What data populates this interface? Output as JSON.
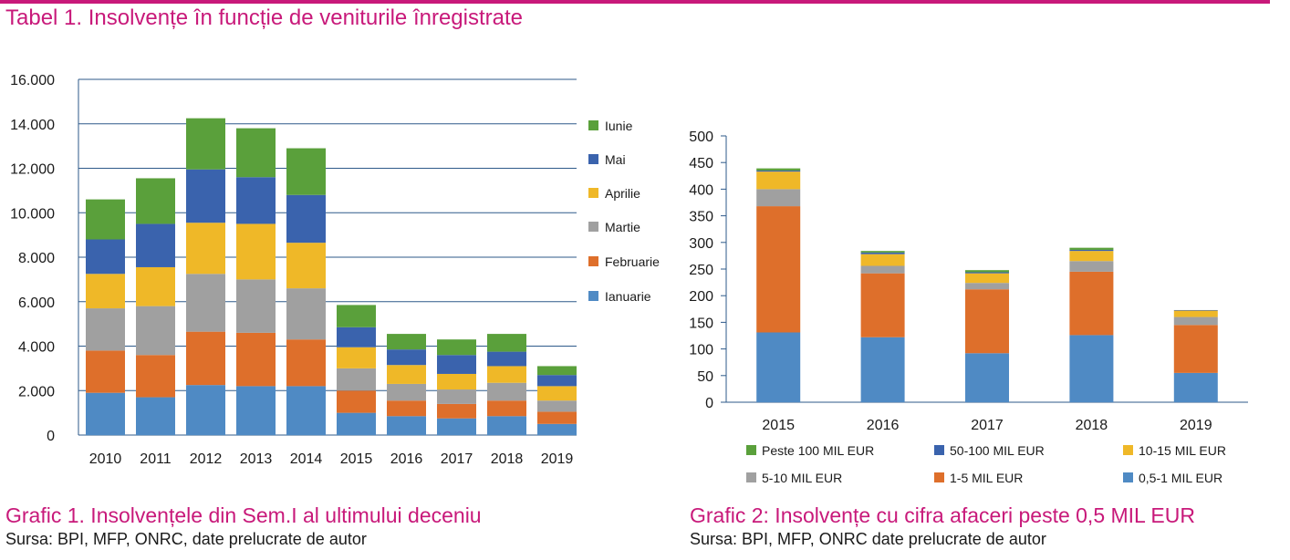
{
  "page_title": "Tabel 1. Insolvențe în funcție de veniturile înregistrate",
  "captions": [
    {
      "title": "Grafic 1. Insolvențele din Sem.I al ultimului deceniu",
      "source": "Sursa: BPI, MFP, ONRC, date prelucrate de autor"
    },
    {
      "title": "Grafic 2: Insolvențe cu cifra afaceri peste 0,5 MIL EUR",
      "source": "Sursa: BPI, MFP, ONRC date prelucrate de autor"
    }
  ],
  "chart_data": [
    {
      "type": "bar",
      "stacked": true,
      "categories": [
        "2010",
        "2011",
        "2012",
        "2013",
        "2014",
        "2015",
        "2016",
        "2017",
        "2018",
        "2019"
      ],
      "ylim": [
        0,
        16000
      ],
      "yticks": [
        0,
        2000,
        4000,
        6000,
        8000,
        10000,
        12000,
        14000,
        16000
      ],
      "ytick_labels": [
        "0",
        "2.000",
        "4.000",
        "6.000",
        "8.000",
        "10.000",
        "12.000",
        "14.000",
        "16.000"
      ],
      "grid": true,
      "legend_position": "right",
      "series": [
        {
          "name": "Ianuarie",
          "color": "#4f8ac4",
          "values": [
            1900,
            1700,
            2250,
            2200,
            2200,
            1000,
            850,
            750,
            850,
            500
          ]
        },
        {
          "name": "Februarie",
          "color": "#de6f2b",
          "values": [
            1900,
            1900,
            2400,
            2400,
            2100,
            1000,
            700,
            650,
            700,
            550
          ]
        },
        {
          "name": "Martie",
          "color": "#a0a0a0",
          "values": [
            1900,
            2200,
            2600,
            2400,
            2300,
            1000,
            750,
            650,
            800,
            500
          ]
        },
        {
          "name": "Aprilie",
          "color": "#efb828",
          "values": [
            1550,
            1750,
            2300,
            2500,
            2050,
            950,
            850,
            700,
            750,
            650
          ]
        },
        {
          "name": "Mai",
          "color": "#3a63ad",
          "values": [
            1550,
            1950,
            2400,
            2100,
            2150,
            900,
            700,
            850,
            650,
            500
          ]
        },
        {
          "name": "Iunie",
          "color": "#5aa03b",
          "values": [
            1800,
            2050,
            2300,
            2200,
            2100,
            1000,
            700,
            700,
            800,
            400
          ]
        }
      ]
    },
    {
      "type": "bar",
      "stacked": true,
      "categories": [
        "2015",
        "2016",
        "2017",
        "2018",
        "2019"
      ],
      "ylim": [
        0,
        500
      ],
      "yticks": [
        0,
        50,
        100,
        150,
        200,
        250,
        300,
        350,
        400,
        450,
        500
      ],
      "ytick_labels": [
        "0",
        "50",
        "100",
        "150",
        "200",
        "250",
        "300",
        "350",
        "400",
        "450",
        "500"
      ],
      "grid": false,
      "legend_position": "bottom",
      "series": [
        {
          "name": "0,5-1 MIL EUR",
          "color": "#4f8ac4",
          "values": [
            131,
            122,
            92,
            126,
            55
          ]
        },
        {
          "name": "1-5 MIL EUR",
          "color": "#de6f2b",
          "values": [
            237,
            120,
            120,
            119,
            90
          ]
        },
        {
          "name": "5-10 MIL EUR",
          "color": "#a0a0a0",
          "values": [
            32,
            14,
            12,
            20,
            15
          ]
        },
        {
          "name": "10-15 MIL EUR",
          "color": "#efb828",
          "values": [
            33,
            22,
            18,
            19,
            12
          ]
        },
        {
          "name": "50-100 MIL EUR",
          "color": "#3a63ad",
          "values": [
            2,
            3,
            2,
            2,
            1
          ]
        },
        {
          "name": "Peste 100 MIL EUR",
          "color": "#5aa03b",
          "values": [
            4,
            3,
            4,
            4,
            0
          ]
        }
      ]
    }
  ]
}
